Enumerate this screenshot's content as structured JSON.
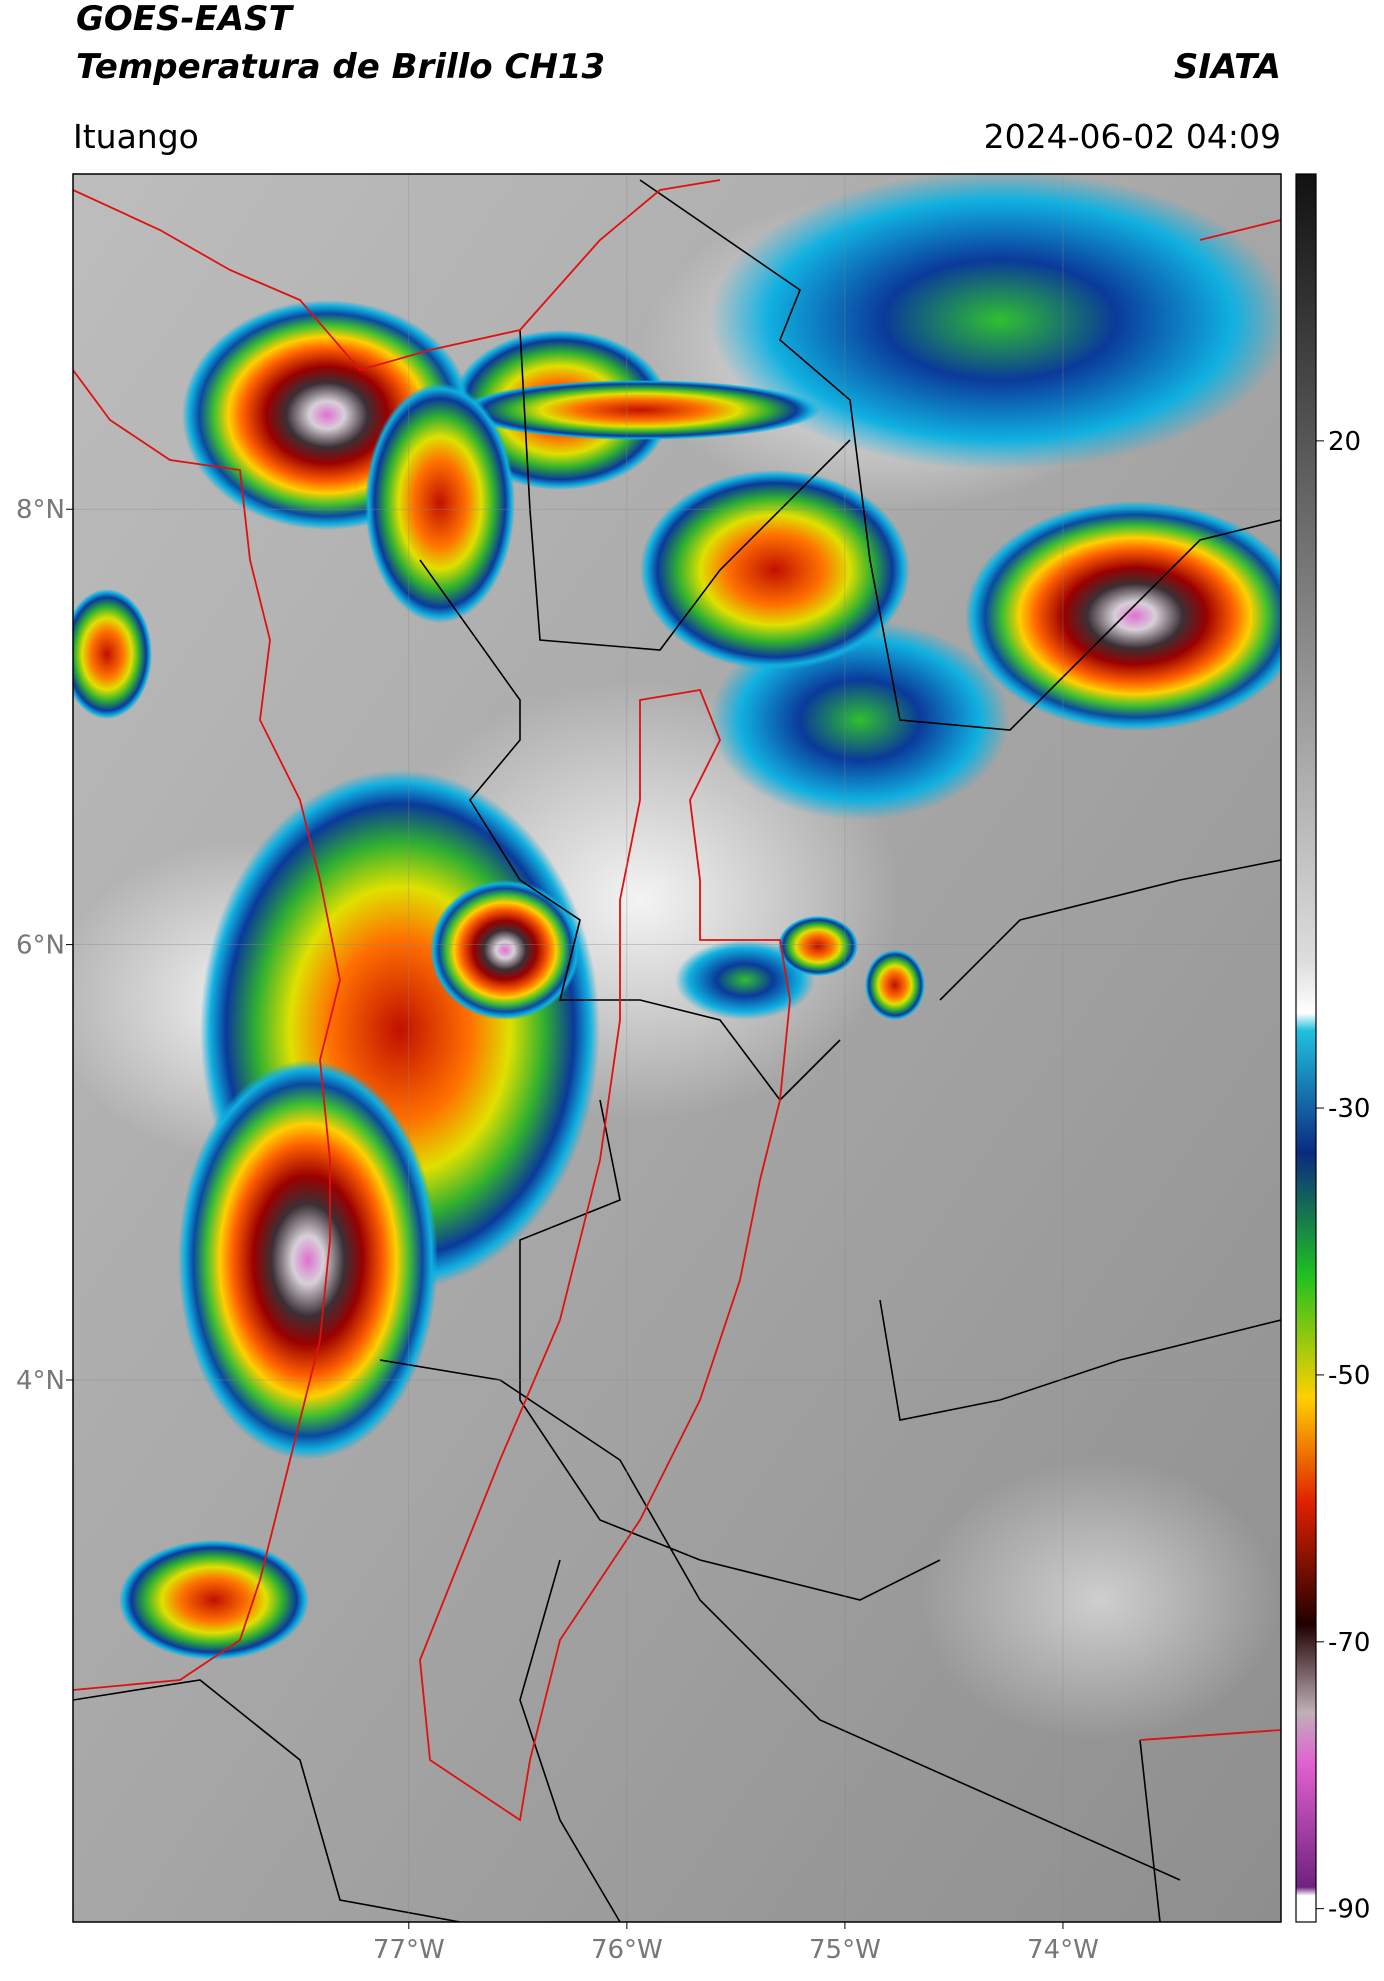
{
  "header": {
    "title": "GOES-EAST",
    "subtitle": "Temperatura de Brillo CH13",
    "brand": "SIATA",
    "location": "Ituango",
    "datetime": "2024-06-02 04:09"
  },
  "map": {
    "lonlim": [
      -78.54,
      -73.0
    ],
    "latlim": [
      1.51,
      9.54
    ],
    "lon_ticks": [
      {
        "value": -77,
        "label": "77°W"
      },
      {
        "value": -76,
        "label": "76°W"
      },
      {
        "value": -75,
        "label": "75°W"
      },
      {
        "value": -74,
        "label": "74°W"
      }
    ],
    "lat_ticks": [
      {
        "value": 8,
        "label": "8°N"
      },
      {
        "value": 6,
        "label": "6°N"
      },
      {
        "value": 4,
        "label": "4°N"
      }
    ],
    "grid": true
  },
  "colorbar": {
    "lim": [
      -91,
      40
    ],
    "ticks": [
      20,
      -30,
      -50,
      -70,
      -90
    ]
  }
}
